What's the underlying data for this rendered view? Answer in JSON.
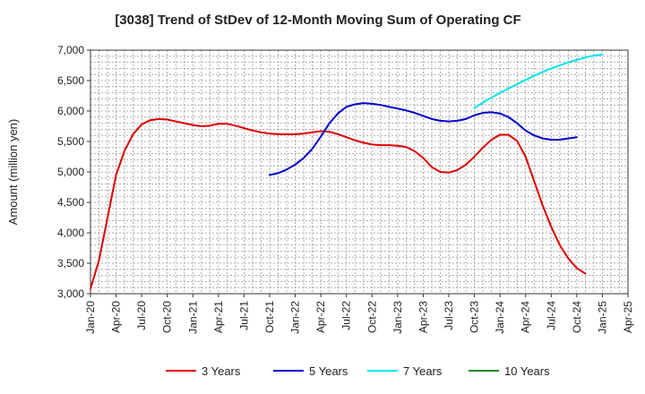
{
  "chart_data": {
    "type": "line",
    "title": "[3038]  Trend of StDev of 12-Month Moving Sum of Operating CF",
    "xlabel": "",
    "ylabel": "Amount (million yen)",
    "ylim": [
      3000,
      7000
    ],
    "yticks": [
      3000,
      3500,
      4000,
      4500,
      5000,
      5500,
      6000,
      6500,
      7000
    ],
    "ytick_labels": [
      "3,000",
      "3,500",
      "4,000",
      "4,500",
      "5,000",
      "5,500",
      "6,000",
      "6,500",
      "7,000"
    ],
    "x_range": [
      "2020-01",
      "2025-04"
    ],
    "x_ticks": [
      "Jan-20",
      "Apr-20",
      "Jul-20",
      "Oct-20",
      "Jan-21",
      "Apr-21",
      "Jul-21",
      "Oct-21",
      "Jan-22",
      "Apr-22",
      "Jul-22",
      "Oct-22",
      "Jan-23",
      "Apr-23",
      "Jul-23",
      "Oct-23",
      "Jan-24",
      "Apr-24",
      "Jul-24",
      "Oct-24",
      "Jan-25",
      "Apr-25"
    ],
    "grid": true,
    "legend_position": "bottom",
    "series": [
      {
        "name": "3 Years",
        "color": "#dd0000",
        "start": "2020-01",
        "values": [
          3080,
          3550,
          4250,
          4950,
          5350,
          5620,
          5780,
          5850,
          5870,
          5860,
          5830,
          5800,
          5770,
          5750,
          5760,
          5790,
          5790,
          5760,
          5720,
          5680,
          5650,
          5630,
          5620,
          5620,
          5620,
          5630,
          5650,
          5670,
          5660,
          5620,
          5570,
          5520,
          5480,
          5450,
          5440,
          5440,
          5430,
          5410,
          5340,
          5230,
          5080,
          5000,
          4990,
          5030,
          5120,
          5250,
          5400,
          5530,
          5610,
          5610,
          5510,
          5250,
          4850,
          4450,
          4100,
          3800,
          3580,
          3420,
          3330
        ]
      },
      {
        "name": "5 Years",
        "color": "#0000cc",
        "start": "2021-10",
        "values": [
          4950,
          4980,
          5040,
          5120,
          5230,
          5380,
          5580,
          5800,
          5960,
          6070,
          6110,
          6130,
          6120,
          6100,
          6070,
          6040,
          6010,
          5970,
          5920,
          5870,
          5840,
          5830,
          5840,
          5870,
          5930,
          5970,
          5980,
          5960,
          5900,
          5800,
          5680,
          5600,
          5550,
          5530,
          5530,
          5550,
          5570
        ]
      },
      {
        "name": "7 Years",
        "color": "#00e5ee",
        "start": "2023-10",
        "values": [
          6050,
          6140,
          6220,
          6300,
          6370,
          6440,
          6510,
          6580,
          6640,
          6700,
          6750,
          6800,
          6840,
          6880,
          6910,
          6930
        ]
      },
      {
        "name": "10 Years",
        "color": "#228822",
        "start": "2024-10",
        "values": []
      }
    ]
  }
}
